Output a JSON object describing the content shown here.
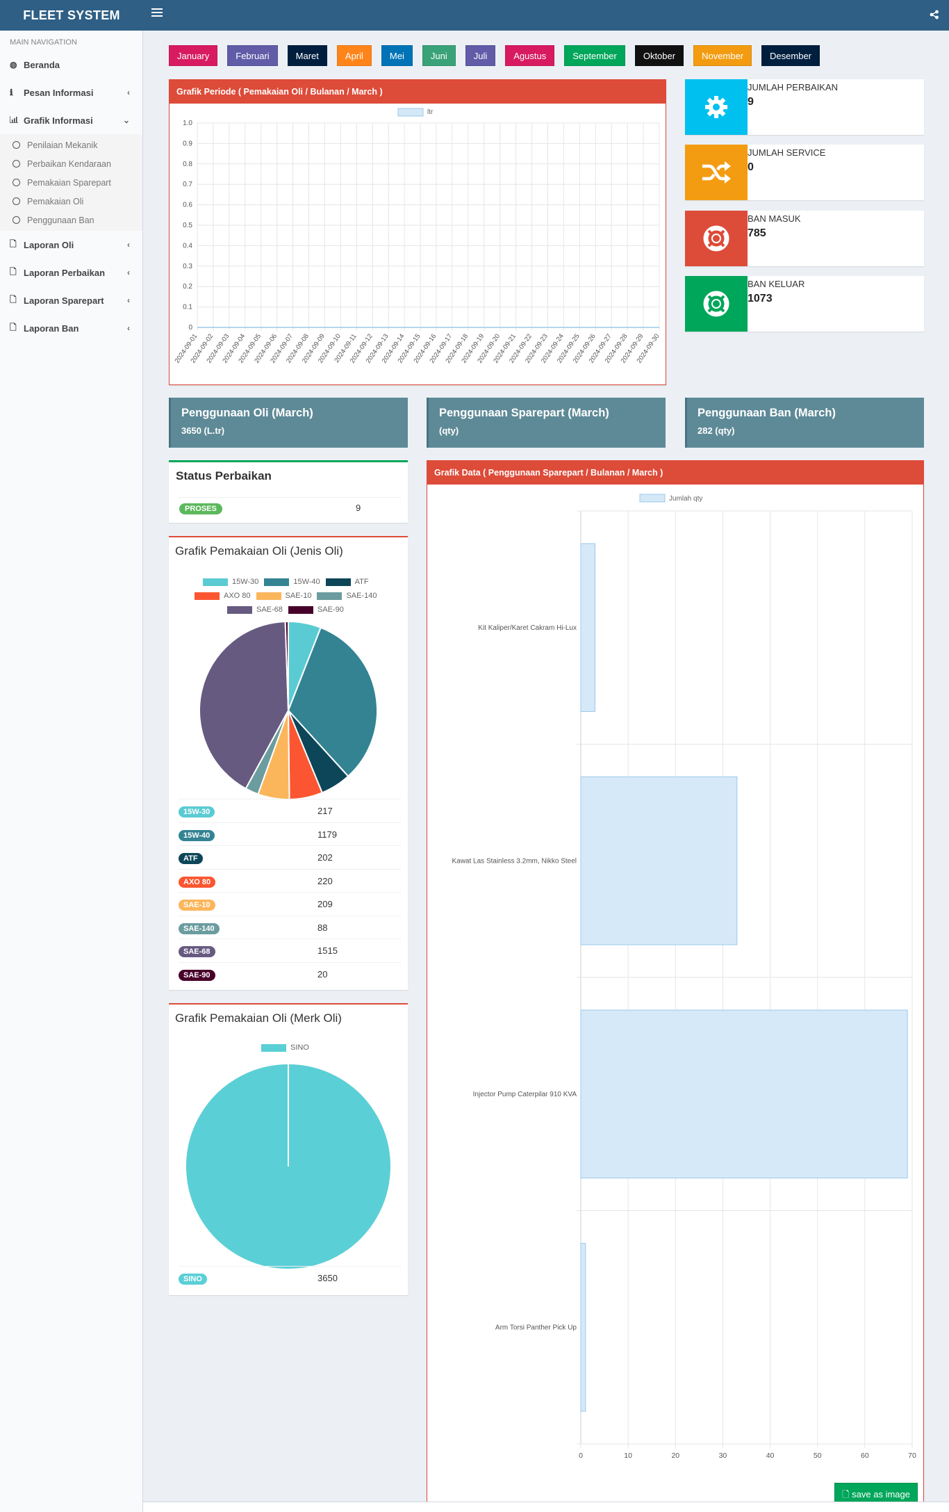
{
  "app": {
    "title": "FLEET SYSTEM"
  },
  "sidebar": {
    "header": "MAIN NAVIGATION",
    "items": [
      {
        "label": "Beranda",
        "icon": "dashboard-icon"
      },
      {
        "label": "Pesan Informasi",
        "icon": "info-icon"
      },
      {
        "label": "Grafik Informasi",
        "icon": "bar-chart-icon"
      },
      {
        "label": "Laporan Oli",
        "icon": "file-icon"
      },
      {
        "label": "Laporan Perbaikan",
        "icon": "file-icon"
      },
      {
        "label": "Laporan Sparepart",
        "icon": "file-icon"
      },
      {
        "label": "Laporan Ban",
        "icon": "file-icon"
      }
    ],
    "subitems": [
      "Penilaian Mekanik",
      "Perbaikan Kendaraan",
      "Pemakaian Sparepart",
      "Pemakaian Oli",
      "Penggunaan Ban"
    ]
  },
  "months": [
    {
      "label": "January",
      "color": "#d81b60"
    },
    {
      "label": "Februari",
      "color": "#605ca8"
    },
    {
      "label": "Maret",
      "color": "#001f3f"
    },
    {
      "label": "April",
      "color": "#ff851b"
    },
    {
      "label": "Mei",
      "color": "#0073b7"
    },
    {
      "label": "Juni",
      "color": "#39a278"
    },
    {
      "label": "Juli",
      "color": "#605ca8"
    },
    {
      "label": "Agustus",
      "color": "#d81b60"
    },
    {
      "label": "September",
      "color": "#00a65a"
    },
    {
      "label": "Oktober",
      "color": "#111111"
    },
    {
      "label": "November",
      "color": "#f39c12"
    },
    {
      "label": "Desember",
      "color": "#001f3f"
    }
  ],
  "period_chart": {
    "title": "Grafik Periode ( Pemakaian Oli / Bulanan / March )",
    "legend": "ltr"
  },
  "info_boxes": [
    {
      "label": "JUMLAH PERBAIKAN",
      "value": "9",
      "color": "#00c0ef",
      "icon": "gear-icon"
    },
    {
      "label": "JUMLAH SERVICE",
      "value": "0",
      "color": "#f39c12",
      "icon": "shuffle-icon"
    },
    {
      "label": "BAN MASUK",
      "value": "785",
      "color": "#dd4b39",
      "icon": "lifebuoy-icon"
    },
    {
      "label": "BAN KELUAR",
      "value": "1073",
      "color": "#00a65a",
      "icon": "lifebuoy-icon"
    }
  ],
  "summaries": [
    {
      "title": "Penggunaan Oli (March)",
      "sub": "3650 (L.tr)"
    },
    {
      "title": "Penggunaan Sparepart (March)",
      "sub": "(qty)"
    },
    {
      "title": "Penggunaan Ban (March)",
      "sub": "282 (qty)"
    }
  ],
  "status": {
    "title": "Status Perbaikan",
    "badge": "PROSES",
    "value": "9",
    "color": "#5cb85c"
  },
  "pie1": {
    "title": "Grafik Pemakaian Oli (Jenis Oli)"
  },
  "pie2": {
    "title": "Grafik Pemakaian Oli (Merk Oli)"
  },
  "sparepart_chart": {
    "title": "Grafik Data ( Penggunaan Sparepart / Bulanan / March )",
    "legend": "Jumlah qty",
    "save": "save as image"
  },
  "chart_data": [
    {
      "type": "line",
      "title": "Grafik Periode ( Pemakaian Oli / Bulanan / March )",
      "series": [
        {
          "name": "ltr",
          "values": [
            0,
            0,
            0,
            0,
            0,
            0,
            0,
            0,
            0,
            0,
            0,
            0,
            0,
            0,
            0,
            0,
            0,
            0,
            0,
            0,
            0,
            0,
            0,
            0,
            0,
            0,
            0,
            0,
            0,
            0
          ]
        }
      ],
      "x": [
        "2024-09-01",
        "2024-09-02",
        "2024-09-03",
        "2024-09-04",
        "2024-09-05",
        "2024-09-06",
        "2024-09-07",
        "2024-09-08",
        "2024-09-09",
        "2024-09-10",
        "2024-09-11",
        "2024-09-12",
        "2024-09-13",
        "2024-09-14",
        "2024-09-15",
        "2024-09-16",
        "2024-09-17",
        "2024-09-18",
        "2024-09-19",
        "2024-09-20",
        "2024-09-21",
        "2024-09-22",
        "2024-09-23",
        "2024-09-24",
        "2024-09-25",
        "2024-09-26",
        "2024-09-27",
        "2024-09-28",
        "2024-09-29",
        "2024-09-30"
      ],
      "ylim": [
        0,
        1.0
      ],
      "yticks": [
        "0",
        "0.1",
        "0.2",
        "0.3",
        "0.4",
        "0.5",
        "0.6",
        "0.7",
        "0.8",
        "0.9",
        "1.0"
      ]
    },
    {
      "type": "pie",
      "title": "Grafik Pemakaian Oli (Jenis Oli)",
      "categories": [
        "15W-30",
        "15W-40",
        "ATF",
        "AXO 80",
        "SAE-10",
        "SAE-140",
        "SAE-68",
        "SAE-90"
      ],
      "values": [
        217,
        1179,
        202,
        220,
        209,
        88,
        1515,
        20
      ],
      "colors": [
        "#5bcbd3",
        "#338393",
        "#0d4658",
        "#fb5631",
        "#fbb65b",
        "#6b9c9f",
        "#675a80",
        "#47002a"
      ]
    },
    {
      "type": "pie",
      "title": "Grafik Pemakaian Oli (Merk Oli)",
      "categories": [
        "SINO"
      ],
      "values": [
        3650
      ],
      "colors": [
        "#5bcfd6"
      ]
    },
    {
      "type": "bar",
      "orientation": "horizontal",
      "title": "Grafik Data ( Penggunaan Sparepart / Bulanan / March )",
      "categories": [
        "Kit Kaliper/Karet Cakram Hi-Lux",
        "Kawat Las Stainless 3.2mm, Nikko Steel",
        "Injector Pump Caterpilar 910 KVA",
        "Arm Torsi Panther Pick Up"
      ],
      "values": [
        3,
        33,
        69,
        1
      ],
      "legend": "Jumlah qty",
      "xlim": [
        0,
        70
      ],
      "xticks": [
        "0",
        "10",
        "20",
        "30",
        "40",
        "50",
        "60",
        "70"
      ]
    }
  ]
}
